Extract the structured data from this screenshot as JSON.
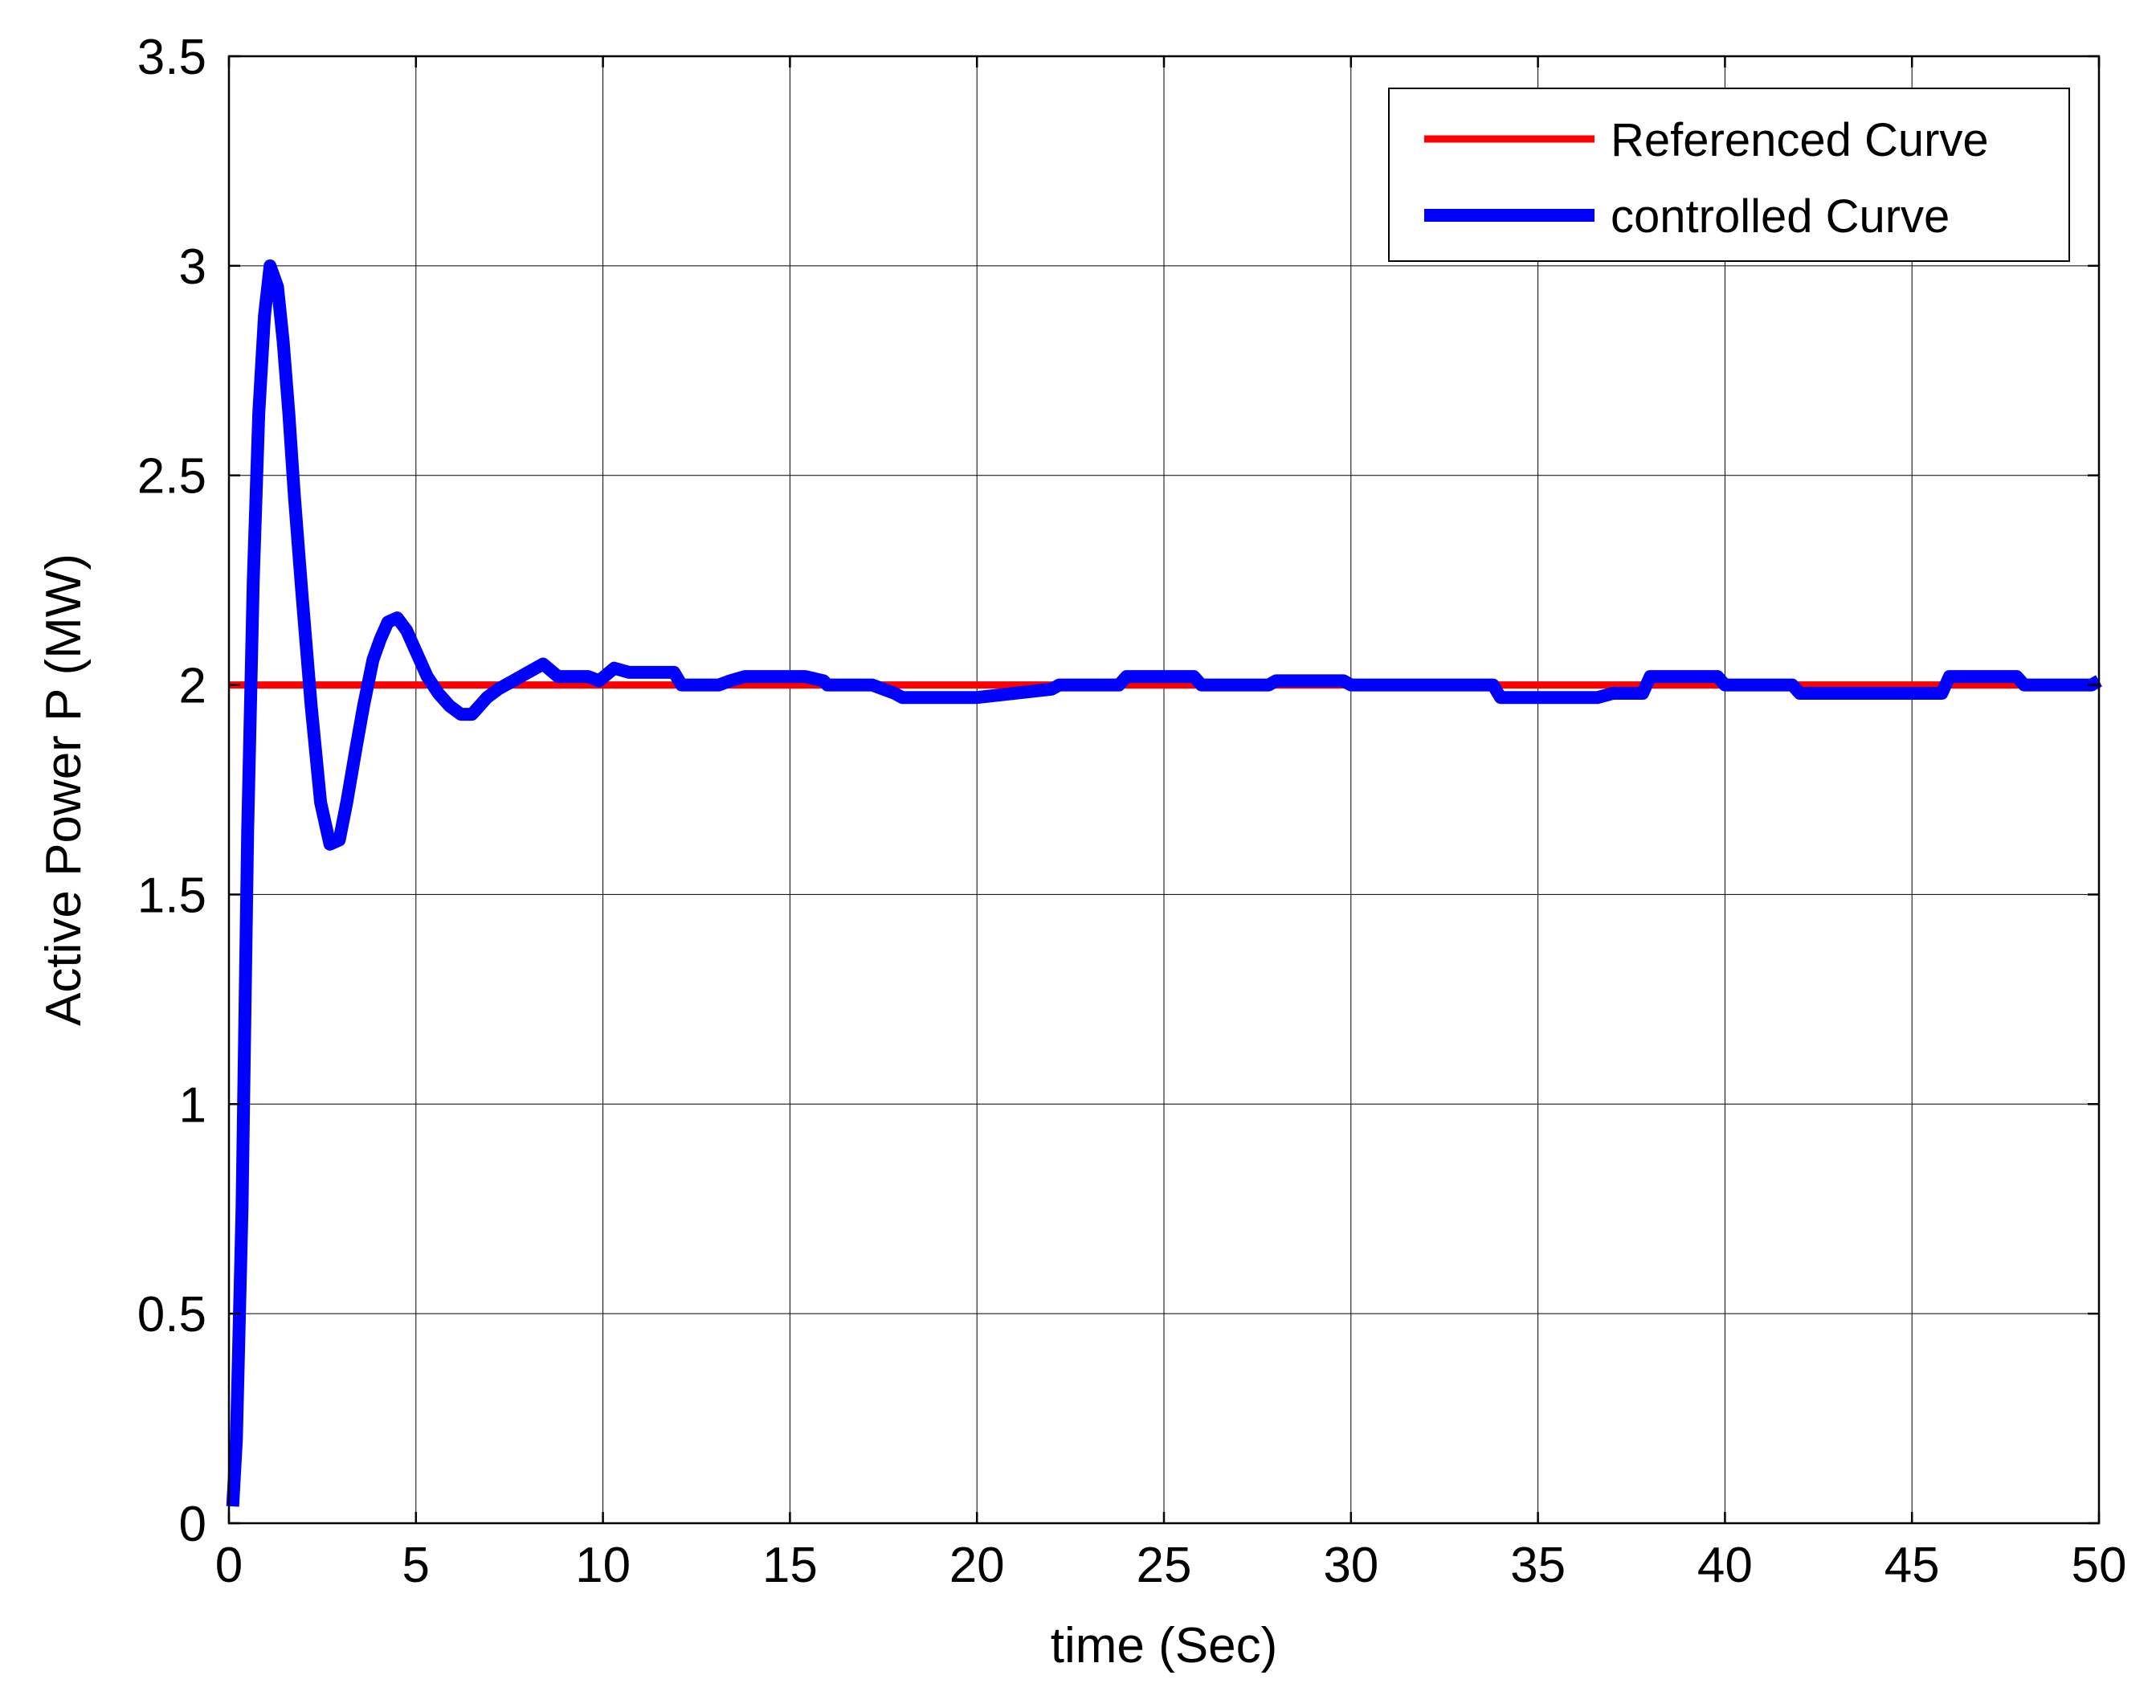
{
  "chart_data": {
    "type": "line",
    "title": "",
    "xlabel": "time (Sec)",
    "ylabel": "Active Power P (MW)",
    "xlim": [
      0,
      50
    ],
    "ylim": [
      0,
      3.5
    ],
    "xticks": [
      0,
      5,
      10,
      15,
      20,
      25,
      30,
      35,
      40,
      45,
      50
    ],
    "yticks": [
      0,
      0.5,
      1,
      1.5,
      2,
      2.5,
      3,
      3.5
    ],
    "x_tick_labels": [
      "0",
      "5",
      "10",
      "15",
      "20",
      "25",
      "30",
      "35",
      "40",
      "45",
      "50"
    ],
    "y_tick_labels": [
      "0",
      "0.5",
      "1",
      "1.5",
      "2",
      "2.5",
      "3",
      "3.5"
    ],
    "grid": true,
    "legend_position": "top-right",
    "series": [
      {
        "name": "Referenced Curve",
        "color": "#ff0000",
        "x": [
          0,
          50
        ],
        "y": [
          2.0,
          2.0
        ]
      },
      {
        "name": "controlled Curve",
        "color": "#0000ff",
        "x": [
          0.1,
          0.2,
          0.35,
          0.5,
          0.65,
          0.8,
          0.95,
          1.1,
          1.3,
          1.45,
          1.6,
          1.75,
          1.95,
          2.2,
          2.45,
          2.7,
          2.95,
          3.15,
          3.4,
          3.6,
          3.85,
          4.05,
          4.25,
          4.5,
          4.75,
          5.0,
          5.3,
          5.6,
          5.9,
          6.2,
          6.5,
          6.9,
          7.2,
          7.6,
          8.0,
          8.4,
          8.8,
          9.2,
          9.6,
          9.9,
          10.3,
          10.7,
          11.1,
          11.5,
          11.9,
          12.1,
          12.7,
          13.1,
          13.4,
          13.8,
          14.0,
          14.2,
          14.4,
          14.8,
          15.4,
          15.9,
          16.0,
          17.2,
          17.8,
          18.0,
          19.8,
          20.0,
          22.0,
          22.2,
          23.8,
          24.0,
          25.8,
          26.0,
          27.8,
          28.0,
          29.8,
          30.0,
          31.8,
          32.0,
          33.8,
          34.0,
          36.6,
          37.0,
          37.8,
          38.0,
          39.8,
          40.0,
          41.8,
          42.0,
          45.8,
          46.0,
          47.8,
          48.0,
          49.8,
          50.0
        ],
        "y": [
          0.04,
          0.2,
          0.75,
          1.65,
          2.25,
          2.65,
          2.88,
          3.0,
          2.95,
          2.82,
          2.65,
          2.45,
          2.22,
          1.95,
          1.72,
          1.62,
          1.63,
          1.72,
          1.85,
          1.95,
          2.06,
          2.11,
          2.15,
          2.16,
          2.13,
          2.08,
          2.02,
          1.98,
          1.95,
          1.93,
          1.93,
          1.97,
          1.99,
          2.01,
          2.03,
          2.05,
          2.02,
          2.02,
          2.02,
          2.01,
          2.04,
          2.03,
          2.03,
          2.03,
          2.03,
          2.0,
          2.0,
          2.0,
          2.01,
          2.02,
          2.02,
          2.02,
          2.02,
          2.02,
          2.02,
          2.01,
          2.0,
          2.0,
          1.98,
          1.97,
          1.97,
          1.97,
          1.99,
          2.0,
          2.0,
          2.02,
          2.02,
          2.0,
          2.0,
          2.01,
          2.01,
          2.0,
          2.0,
          2.0,
          2.0,
          1.97,
          1.97,
          1.98,
          1.98,
          2.02,
          2.02,
          2.0,
          2.0,
          1.98,
          1.98,
          2.02,
          2.02,
          2.0,
          2.0,
          2.01
        ]
      }
    ]
  }
}
